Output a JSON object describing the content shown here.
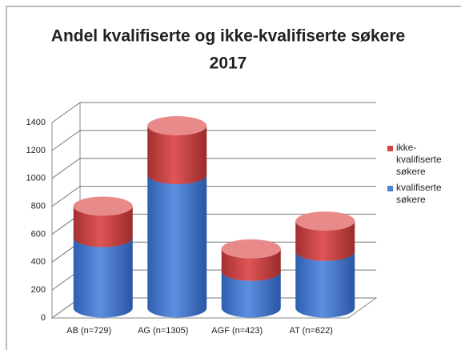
{
  "chart_data": {
    "type": "bar3d_stacked",
    "title_lines": [
      "Andel kvalifiserte og ikke-kvalifiserte søkere",
      "2017"
    ],
    "categories": [
      "AB (n=729)",
      "AG (n=1305)",
      "AGF (n=423)",
      "AT (n=622)"
    ],
    "series": [
      {
        "name": "kvalifiserte søkere",
        "color": "#4f81d4",
        "values": [
          505,
          955,
          262,
          405
        ]
      },
      {
        "name": "ikke-kvalifiserte søkere",
        "color": "#d24545",
        "values": [
          224,
          350,
          161,
          217
        ]
      }
    ],
    "ylim": [
      0,
      1400
    ],
    "yticks": [
      0,
      200,
      400,
      600,
      800,
      1000,
      1200,
      1400
    ],
    "grid": true,
    "legend": "right"
  }
}
